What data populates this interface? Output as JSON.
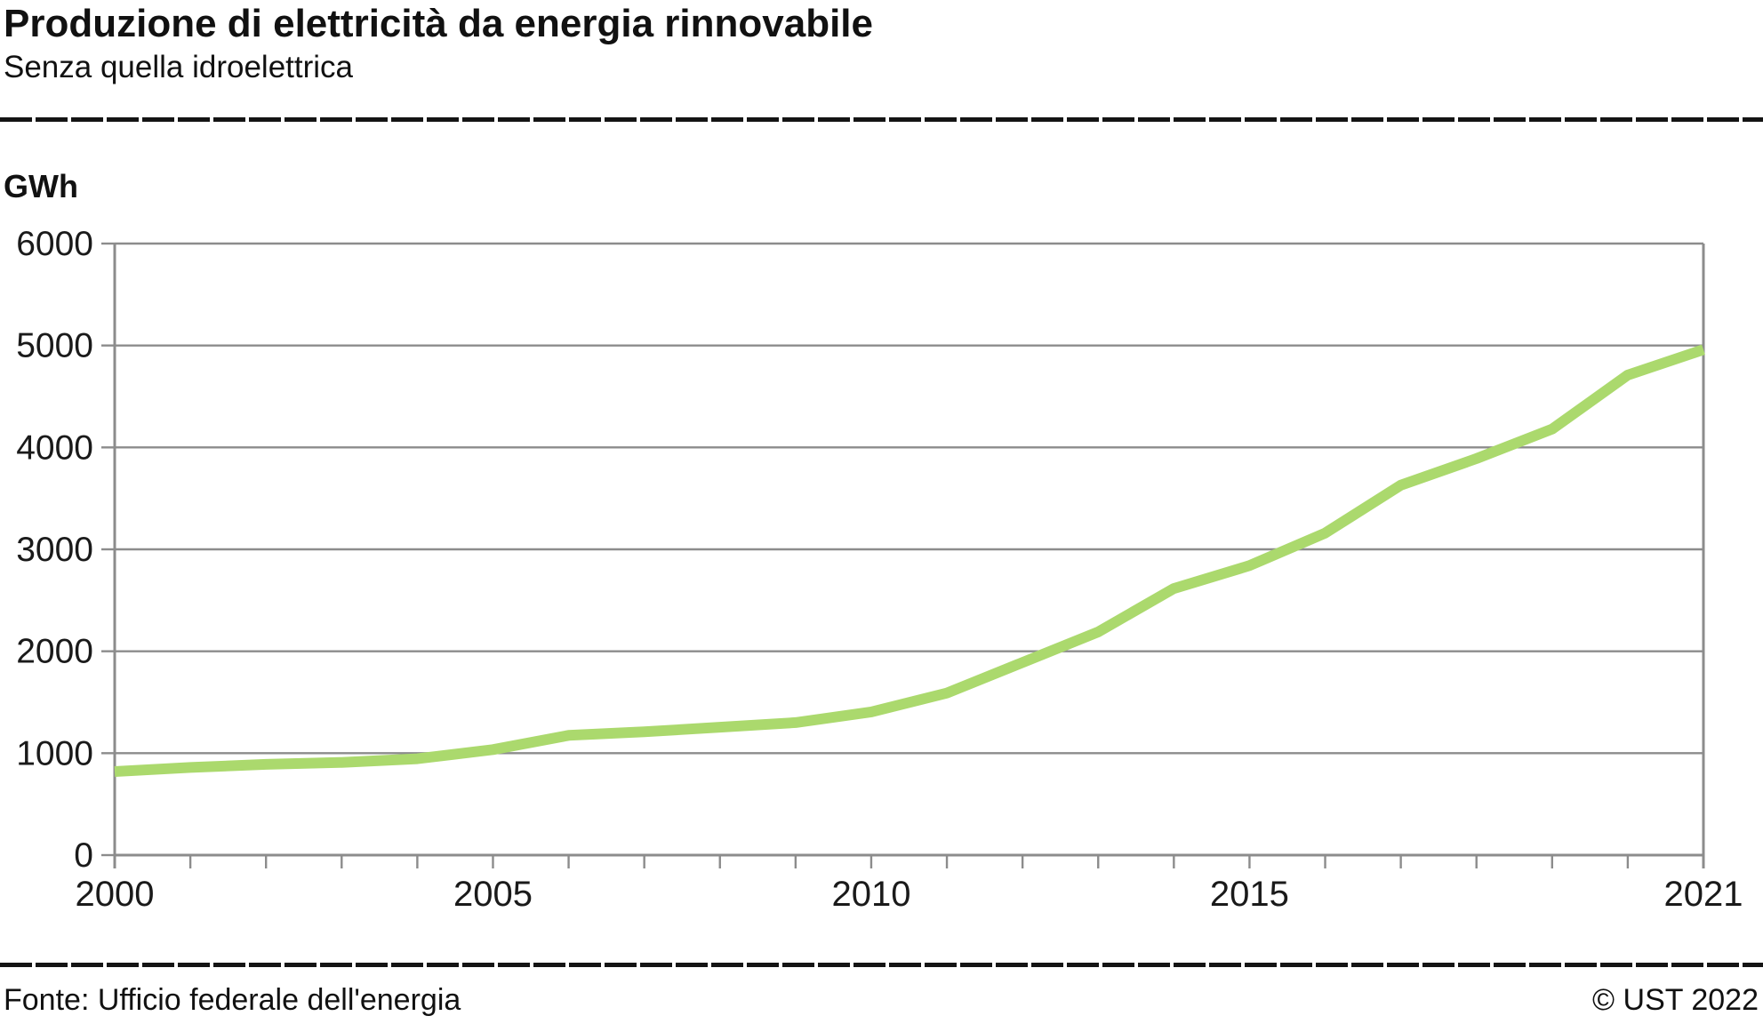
{
  "header": {
    "title": "Produzione di elettricità da energia rinnovabile",
    "subtitle": "Senza quella idroelettrica"
  },
  "footer": {
    "source": "Fonte: Ufficio federale dell'energia",
    "copyright": "© UST 2022"
  },
  "chart_data": {
    "type": "line",
    "title": "Produzione di elettricità da energia rinnovabile",
    "subtitle": "Senza quella idroelettrica",
    "ylabel": "GWh",
    "xlabel": "",
    "x": [
      2000,
      2001,
      2002,
      2003,
      2004,
      2005,
      2006,
      2007,
      2008,
      2009,
      2010,
      2011,
      2012,
      2013,
      2014,
      2015,
      2016,
      2017,
      2018,
      2019,
      2020,
      2021
    ],
    "series": [
      {
        "name": "Produzione di elettricità da energia rinnovabile senza quella idroelettrica",
        "values": [
          820,
          860,
          890,
          910,
          945,
          1035,
          1175,
          1210,
          1255,
          1300,
          1405,
          1590,
          1890,
          2190,
          2615,
          2840,
          3160,
          3630,
          3890,
          4180,
          4710,
          4960
        ]
      }
    ],
    "ylim": [
      0,
      6000
    ],
    "y_ticks": [
      0,
      1000,
      2000,
      3000,
      4000,
      5000,
      6000
    ],
    "x_tick_years": [
      2000,
      2001,
      2002,
      2003,
      2004,
      2005,
      2006,
      2007,
      2008,
      2009,
      2010,
      2011,
      2012,
      2013,
      2014,
      2015,
      2016,
      2017,
      2018,
      2019,
      2020,
      2021
    ],
    "x_label_years": [
      2000,
      2005,
      2010,
      2015,
      2021
    ],
    "grid": "horizontal",
    "legend": "none",
    "colors": {
      "line": "#abd96d",
      "grid": "#8c8c8c",
      "axis": "#8c8c8c",
      "text": "#1a1a1a"
    }
  }
}
